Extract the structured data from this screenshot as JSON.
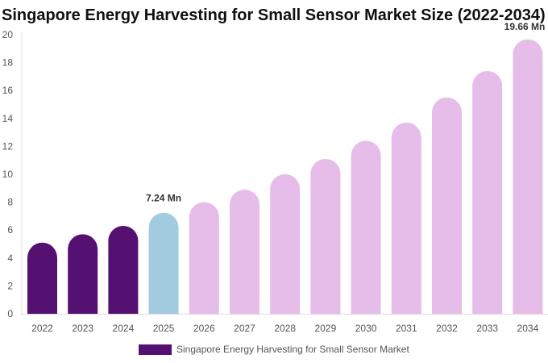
{
  "chart_data": {
    "type": "bar",
    "title": "Singapore Energy Harvesting for Small Sensor Market Size (2022-2034)",
    "xlabel": "",
    "ylabel": "",
    "ylim": [
      0,
      20
    ],
    "yticks": [
      "0",
      "2",
      "4",
      "6",
      "8",
      "10",
      "12",
      "14",
      "16",
      "18",
      "20"
    ],
    "categories": [
      "2022",
      "2023",
      "2024",
      "2025",
      "2026",
      "2027",
      "2028",
      "2029",
      "2030",
      "2031",
      "2032",
      "2033",
      "2034"
    ],
    "series": [
      {
        "name": "Singapore Energy Harvesting for Small Sensor Market",
        "values": [
          5.1,
          5.7,
          6.3,
          7.24,
          8.0,
          8.9,
          10.0,
          11.1,
          12.4,
          13.7,
          15.5,
          17.4,
          19.66
        ]
      }
    ],
    "bar_colors": [
      "#541171",
      "#541171",
      "#541171",
      "#a3cbdf",
      "#e6bde9",
      "#e6bde9",
      "#e6bde9",
      "#e6bde9",
      "#e6bde9",
      "#e6bde9",
      "#e6bde9",
      "#e6bde9",
      "#e6bde9"
    ],
    "data_labels": [
      {
        "category": "2025",
        "text": "7.24 Mn"
      },
      {
        "category": "2034",
        "text": "19.66 Mn"
      }
    ],
    "legend": {
      "label": "Singapore Energy Harvesting for Small Sensor Market",
      "color": "#541171",
      "position": "bottom"
    },
    "grid": false
  }
}
